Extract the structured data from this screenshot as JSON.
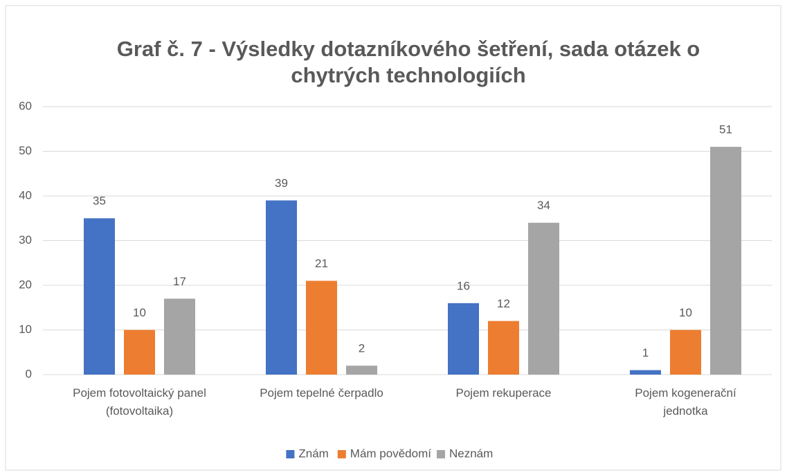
{
  "chart_data": {
    "type": "bar",
    "title": "Graf č. 7 - Výsledky dotazníkového šetření, sada otázek o\nchytrých technologiích",
    "categories": [
      "Pojem fotovoltaický panel\n(fotovoltaika)",
      "Pojem tepelné čerpadlo",
      "Pojem rekuperace",
      "Pojem kogenerační\njednotka"
    ],
    "series": [
      {
        "name": "Znám",
        "color": "#4472c4",
        "values": [
          35,
          39,
          16,
          1
        ]
      },
      {
        "name": "Mám povědomí",
        "color": "#ed7d31",
        "values": [
          10,
          21,
          12,
          10
        ]
      },
      {
        "name": "Neznám",
        "color": "#a5a5a5",
        "values": [
          17,
          2,
          34,
          51
        ]
      }
    ],
    "ylim": [
      0,
      60
    ],
    "yticks": [
      0,
      10,
      20,
      30,
      40,
      50,
      60
    ],
    "grid": true,
    "legend": "bottom"
  }
}
